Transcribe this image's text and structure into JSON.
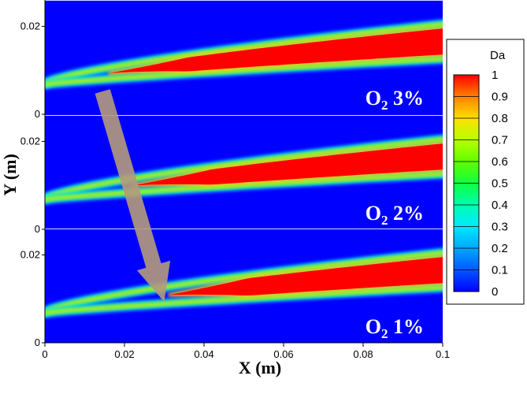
{
  "chart_data": {
    "type": "heatmap",
    "xlabel": "X (m)",
    "ylabel": "Y (m)",
    "xlim": [
      0,
      0.1
    ],
    "x_ticks": [
      "0",
      "0.02",
      "0.04",
      "0.06",
      "0.08",
      "0.1"
    ],
    "y_ticks": [
      "0",
      "0.02"
    ],
    "panels": [
      {
        "label": "O2 3%",
        "label_main": "O",
        "label_sub": "2",
        "label_rest": " 3%",
        "ylim": [
          0,
          0.026
        ],
        "flame_start_x": 0.016
      },
      {
        "label": "O2 2%",
        "label_main": "O",
        "label_sub": "2",
        "label_rest": " 2%",
        "ylim": [
          0,
          0.026
        ],
        "flame_start_x": 0.022
      },
      {
        "label": "O2 1%",
        "label_main": "O",
        "label_sub": "2",
        "label_rest": " 1%",
        "ylim": [
          0,
          0.026
        ],
        "flame_start_x": 0.031
      }
    ],
    "colorbar": {
      "title": "Da",
      "range": [
        0,
        1
      ],
      "ticks": [
        "1",
        "0.9",
        "0.8",
        "0.7",
        "0.6",
        "0.5",
        "0.4",
        "0.3",
        "0.2",
        "0.1",
        "0"
      ],
      "colors": [
        "#0000ff",
        "#0058ff",
        "#00a8ff",
        "#00e8ff",
        "#00ffb0",
        "#10ff40",
        "#60ff00",
        "#b8ff00",
        "#ffe000",
        "#ff8000",
        "#ff0000"
      ]
    },
    "annotation": "arrow from O2 3% flame onset down to O2 1% flame onset"
  }
}
